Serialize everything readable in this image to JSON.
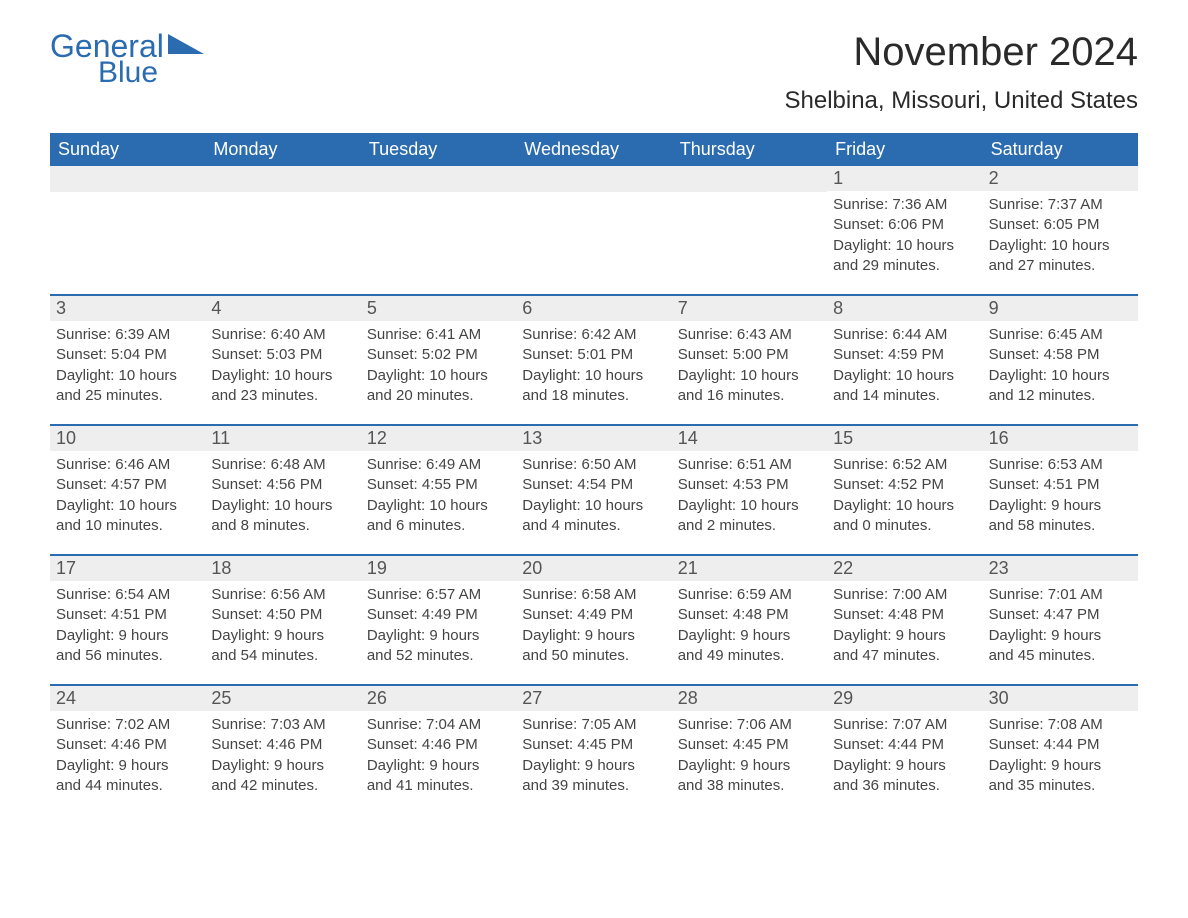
{
  "logo": {
    "general": "General",
    "blue": "Blue"
  },
  "title": "November 2024",
  "location": "Shelbina, Missouri, United States",
  "headers": [
    "Sunday",
    "Monday",
    "Tuesday",
    "Wednesday",
    "Thursday",
    "Friday",
    "Saturday"
  ],
  "colors": {
    "brand": "#2b6bb0",
    "header_bg": "#2b6bb0",
    "header_text": "#ffffff",
    "daynum_bg": "#eeeeee",
    "text": "#444444",
    "body_bg": "#ffffff"
  },
  "weeks": [
    [
      null,
      null,
      null,
      null,
      null,
      {
        "n": "1",
        "sunrise": "7:36 AM",
        "sunset": "6:06 PM",
        "dl1": "10 hours",
        "dl2": "and 29 minutes."
      },
      {
        "n": "2",
        "sunrise": "7:37 AM",
        "sunset": "6:05 PM",
        "dl1": "10 hours",
        "dl2": "and 27 minutes."
      }
    ],
    [
      {
        "n": "3",
        "sunrise": "6:39 AM",
        "sunset": "5:04 PM",
        "dl1": "10 hours",
        "dl2": "and 25 minutes."
      },
      {
        "n": "4",
        "sunrise": "6:40 AM",
        "sunset": "5:03 PM",
        "dl1": "10 hours",
        "dl2": "and 23 minutes."
      },
      {
        "n": "5",
        "sunrise": "6:41 AM",
        "sunset": "5:02 PM",
        "dl1": "10 hours",
        "dl2": "and 20 minutes."
      },
      {
        "n": "6",
        "sunrise": "6:42 AM",
        "sunset": "5:01 PM",
        "dl1": "10 hours",
        "dl2": "and 18 minutes."
      },
      {
        "n": "7",
        "sunrise": "6:43 AM",
        "sunset": "5:00 PM",
        "dl1": "10 hours",
        "dl2": "and 16 minutes."
      },
      {
        "n": "8",
        "sunrise": "6:44 AM",
        "sunset": "4:59 PM",
        "dl1": "10 hours",
        "dl2": "and 14 minutes."
      },
      {
        "n": "9",
        "sunrise": "6:45 AM",
        "sunset": "4:58 PM",
        "dl1": "10 hours",
        "dl2": "and 12 minutes."
      }
    ],
    [
      {
        "n": "10",
        "sunrise": "6:46 AM",
        "sunset": "4:57 PM",
        "dl1": "10 hours",
        "dl2": "and 10 minutes."
      },
      {
        "n": "11",
        "sunrise": "6:48 AM",
        "sunset": "4:56 PM",
        "dl1": "10 hours",
        "dl2": "and 8 minutes."
      },
      {
        "n": "12",
        "sunrise": "6:49 AM",
        "sunset": "4:55 PM",
        "dl1": "10 hours",
        "dl2": "and 6 minutes."
      },
      {
        "n": "13",
        "sunrise": "6:50 AM",
        "sunset": "4:54 PM",
        "dl1": "10 hours",
        "dl2": "and 4 minutes."
      },
      {
        "n": "14",
        "sunrise": "6:51 AM",
        "sunset": "4:53 PM",
        "dl1": "10 hours",
        "dl2": "and 2 minutes."
      },
      {
        "n": "15",
        "sunrise": "6:52 AM",
        "sunset": "4:52 PM",
        "dl1": "10 hours",
        "dl2": "and 0 minutes."
      },
      {
        "n": "16",
        "sunrise": "6:53 AM",
        "sunset": "4:51 PM",
        "dl1": "9 hours",
        "dl2": "and 58 minutes."
      }
    ],
    [
      {
        "n": "17",
        "sunrise": "6:54 AM",
        "sunset": "4:51 PM",
        "dl1": "9 hours",
        "dl2": "and 56 minutes."
      },
      {
        "n": "18",
        "sunrise": "6:56 AM",
        "sunset": "4:50 PM",
        "dl1": "9 hours",
        "dl2": "and 54 minutes."
      },
      {
        "n": "19",
        "sunrise": "6:57 AM",
        "sunset": "4:49 PM",
        "dl1": "9 hours",
        "dl2": "and 52 minutes."
      },
      {
        "n": "20",
        "sunrise": "6:58 AM",
        "sunset": "4:49 PM",
        "dl1": "9 hours",
        "dl2": "and 50 minutes."
      },
      {
        "n": "21",
        "sunrise": "6:59 AM",
        "sunset": "4:48 PM",
        "dl1": "9 hours",
        "dl2": "and 49 minutes."
      },
      {
        "n": "22",
        "sunrise": "7:00 AM",
        "sunset": "4:48 PM",
        "dl1": "9 hours",
        "dl2": "and 47 minutes."
      },
      {
        "n": "23",
        "sunrise": "7:01 AM",
        "sunset": "4:47 PM",
        "dl1": "9 hours",
        "dl2": "and 45 minutes."
      }
    ],
    [
      {
        "n": "24",
        "sunrise": "7:02 AM",
        "sunset": "4:46 PM",
        "dl1": "9 hours",
        "dl2": "and 44 minutes."
      },
      {
        "n": "25",
        "sunrise": "7:03 AM",
        "sunset": "4:46 PM",
        "dl1": "9 hours",
        "dl2": "and 42 minutes."
      },
      {
        "n": "26",
        "sunrise": "7:04 AM",
        "sunset": "4:46 PM",
        "dl1": "9 hours",
        "dl2": "and 41 minutes."
      },
      {
        "n": "27",
        "sunrise": "7:05 AM",
        "sunset": "4:45 PM",
        "dl1": "9 hours",
        "dl2": "and 39 minutes."
      },
      {
        "n": "28",
        "sunrise": "7:06 AM",
        "sunset": "4:45 PM",
        "dl1": "9 hours",
        "dl2": "and 38 minutes."
      },
      {
        "n": "29",
        "sunrise": "7:07 AM",
        "sunset": "4:44 PM",
        "dl1": "9 hours",
        "dl2": "and 36 minutes."
      },
      {
        "n": "30",
        "sunrise": "7:08 AM",
        "sunset": "4:44 PM",
        "dl1": "9 hours",
        "dl2": "and 35 minutes."
      }
    ]
  ],
  "labels": {
    "sunrise": "Sunrise: ",
    "sunset": "Sunset: ",
    "daylight": "Daylight: "
  }
}
